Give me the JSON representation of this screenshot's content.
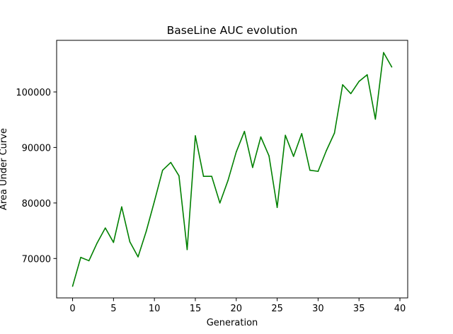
{
  "chart_data": {
    "type": "line",
    "title": "BaseLine AUC evolution",
    "xlabel": "Generation",
    "ylabel": "Area Under Curve",
    "xlim": [
      -1.95,
      40.95
    ],
    "ylim": [
      62900,
      109300
    ],
    "x_ticks": [
      0,
      5,
      10,
      15,
      20,
      25,
      30,
      35,
      40
    ],
    "x_tick_labels": [
      "0",
      "5",
      "10",
      "15",
      "20",
      "25",
      "30",
      "35",
      "40"
    ],
    "y_ticks": [
      70000,
      80000,
      90000,
      100000
    ],
    "y_tick_labels": [
      "70000",
      "80000",
      "90000",
      "100000"
    ],
    "grid": false,
    "legend": "none",
    "series": [
      {
        "color": "#008000",
        "x": [
          0,
          1,
          2,
          3,
          4,
          5,
          6,
          7,
          8,
          9,
          10,
          11,
          12,
          13,
          14,
          15,
          16,
          17,
          18,
          19,
          20,
          21,
          22,
          23,
          24,
          25,
          26,
          27,
          28,
          29,
          30,
          31,
          32,
          33,
          34,
          35,
          36,
          37,
          38,
          39
        ],
        "values": [
          65000,
          70200,
          69600,
          72800,
          75500,
          72900,
          79300,
          73000,
          70300,
          74900,
          80300,
          85900,
          87300,
          84900,
          71600,
          92100,
          84800,
          84800,
          80000,
          84100,
          89200,
          92900,
          86400,
          91900,
          88500,
          79200,
          92200,
          88400,
          92500,
          85900,
          85700,
          89400,
          92600,
          101300,
          99700,
          101900,
          103100,
          95100,
          107100,
          104500
        ]
      }
    ]
  }
}
